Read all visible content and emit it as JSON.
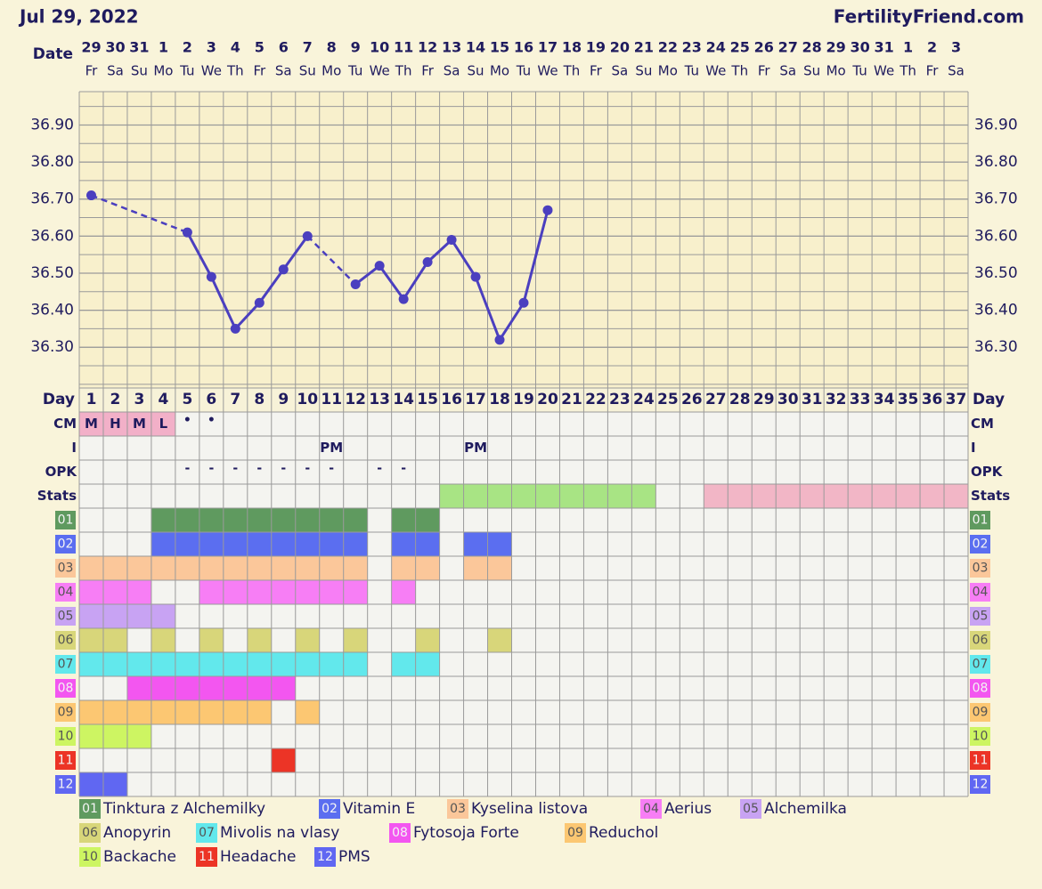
{
  "header": {
    "date": "Jul 29, 2022",
    "site": "FertilityFriend.com"
  },
  "chart_data": {
    "type": "line",
    "date_label": "Date",
    "day_label": "Day",
    "categories": [
      "29",
      "30",
      "31",
      "1",
      "2",
      "3",
      "4",
      "5",
      "6",
      "7",
      "8",
      "9",
      "10",
      "11",
      "12",
      "13",
      "14",
      "15",
      "16",
      "17",
      "18",
      "19",
      "20",
      "21",
      "22",
      "23",
      "24",
      "25",
      "26",
      "27",
      "28",
      "29",
      "30",
      "31",
      "1",
      "2",
      "3"
    ],
    "weekdays": [
      "Fr",
      "Sa",
      "Su",
      "Mo",
      "Tu",
      "We",
      "Th",
      "Fr",
      "Sa",
      "Su",
      "Mo",
      "Tu",
      "We",
      "Th",
      "Fr",
      "Sa",
      "Su",
      "Mo",
      "Tu",
      "We",
      "Th",
      "Fr",
      "Sa",
      "Su",
      "Mo",
      "Tu",
      "We",
      "Th",
      "Fr",
      "Sa",
      "Su",
      "Mo",
      "Tu",
      "We",
      "Th",
      "Fr",
      "Sa"
    ],
    "days": [
      1,
      2,
      3,
      4,
      5,
      6,
      7,
      8,
      9,
      10,
      11,
      12,
      13,
      14,
      15,
      16,
      17,
      18,
      19,
      20,
      21,
      22,
      23,
      24,
      25,
      26,
      27,
      28,
      29,
      30,
      31,
      32,
      33,
      34,
      35,
      36,
      37
    ],
    "series": [
      {
        "color": "#4b3fbf",
        "values": [
          36.71,
          null,
          null,
          null,
          36.61,
          36.49,
          36.35,
          36.42,
          36.51,
          36.6,
          null,
          36.47,
          36.52,
          36.43,
          36.53,
          36.59,
          36.49,
          36.32,
          36.42,
          36.67,
          null,
          null,
          null,
          null,
          null,
          null,
          null,
          null,
          null,
          null,
          null,
          null,
          null,
          null,
          null,
          null,
          null
        ]
      }
    ],
    "ylim": [
      36.19,
      36.99
    ],
    "yticks": [
      {
        "value": 36.3,
        "label": "36.30"
      },
      {
        "value": 36.4,
        "label": "36.40"
      },
      {
        "value": 36.5,
        "label": "36.50"
      },
      {
        "value": 36.6,
        "label": "36.60"
      },
      {
        "value": 36.7,
        "label": "36.70"
      },
      {
        "value": 36.8,
        "label": "36.80"
      },
      {
        "value": 36.9,
        "label": "36.90"
      }
    ],
    "grid": true,
    "gap_style": "dashed"
  },
  "rows": [
    {
      "label": "CM",
      "highlight_color": "#f2b0c8",
      "values": [
        "M",
        "H",
        "M",
        "L",
        "•",
        "•",
        null,
        null,
        null,
        null,
        null,
        null,
        null,
        null,
        null,
        null,
        null,
        null,
        null,
        null,
        null,
        null,
        null,
        null,
        null,
        null,
        null,
        null,
        null,
        null,
        null,
        null,
        null,
        null,
        null,
        null,
        null
      ]
    },
    {
      "label": "I",
      "values": [
        null,
        null,
        null,
        null,
        null,
        null,
        null,
        null,
        null,
        null,
        "PM",
        null,
        null,
        null,
        null,
        null,
        "PM",
        null,
        null,
        null,
        null,
        null,
        null,
        null,
        null,
        null,
        null,
        null,
        null,
        null,
        null,
        null,
        null,
        null,
        null,
        null,
        null
      ]
    },
    {
      "label": "OPK",
      "values": [
        null,
        null,
        null,
        null,
        "-",
        "-",
        "-",
        "-",
        "-",
        "-",
        "-",
        null,
        "-",
        "-",
        null,
        null,
        null,
        null,
        null,
        null,
        null,
        null,
        null,
        null,
        null,
        null,
        null,
        null,
        null,
        null,
        null,
        null,
        null,
        null,
        null,
        null,
        null
      ]
    },
    {
      "label": "Stats",
      "fills": [
        null,
        null,
        null,
        null,
        null,
        null,
        null,
        null,
        null,
        null,
        null,
        null,
        null,
        null,
        null,
        "#a8e484",
        "#a8e484",
        "#a8e484",
        "#a8e484",
        "#a8e484",
        "#a8e484",
        "#a8e484",
        "#a8e484",
        "#a8e484",
        null,
        null,
        "#f2b6c6",
        "#f2b6c6",
        "#f2b6c6",
        "#f2b6c6",
        "#f2b6c6",
        "#f2b6c6",
        "#f2b6c6",
        "#f2b6c6",
        "#f2b6c6",
        "#f2b6c6",
        "#f2b6c6"
      ]
    }
  ],
  "items": [
    {
      "code": "01",
      "name": "Tinktura z Alchemilky",
      "color": "#5f9a5f",
      "days": [
        4,
        5,
        6,
        7,
        8,
        9,
        10,
        11,
        12,
        14,
        15
      ]
    },
    {
      "code": "02",
      "name": "Vitamin E",
      "color": "#5b6ef0",
      "days": [
        4,
        5,
        6,
        7,
        8,
        9,
        10,
        11,
        12,
        14,
        15,
        17,
        18
      ]
    },
    {
      "code": "03",
      "name": "Kyselina listova",
      "color": "#fbc79a",
      "days": [
        1,
        2,
        3,
        4,
        5,
        6,
        7,
        8,
        9,
        10,
        11,
        12,
        14,
        15,
        17,
        18
      ]
    },
    {
      "code": "04",
      "name": "Aerius",
      "color": "#f77ef5",
      "days": [
        1,
        2,
        3,
        6,
        7,
        8,
        9,
        10,
        11,
        12,
        14
      ]
    },
    {
      "code": "05",
      "name": "Alchemilka",
      "color": "#c8a3f3",
      "days": [
        1,
        2,
        3,
        4
      ]
    },
    {
      "code": "06",
      "name": "Anopyrin",
      "color": "#d8d67a",
      "days": [
        1,
        2,
        4,
        6,
        8,
        10,
        12,
        15,
        18
      ]
    },
    {
      "code": "07",
      "name": "Mivolis na vlasy",
      "color": "#62e8ec",
      "days": [
        1,
        2,
        3,
        4,
        5,
        6,
        7,
        8,
        9,
        10,
        11,
        12,
        14,
        15
      ]
    },
    {
      "code": "08",
      "name": "Fytosoja Forte",
      "color": "#f356f0",
      "days": [
        3,
        4,
        5,
        6,
        7,
        8,
        9
      ]
    },
    {
      "code": "09",
      "name": "Reduchol",
      "color": "#fcc772",
      "days": [
        1,
        2,
        3,
        4,
        5,
        6,
        7,
        8,
        10
      ]
    },
    {
      "code": "10",
      "name": "Backache",
      "color": "#cdf562",
      "days": [
        1,
        2,
        3
      ]
    },
    {
      "code": "11",
      "name": "Headache",
      "color": "#ec3426",
      "days": [
        9
      ]
    },
    {
      "code": "12",
      "name": "PMS",
      "color": "#6067f2",
      "days": [
        1,
        2
      ]
    }
  ]
}
